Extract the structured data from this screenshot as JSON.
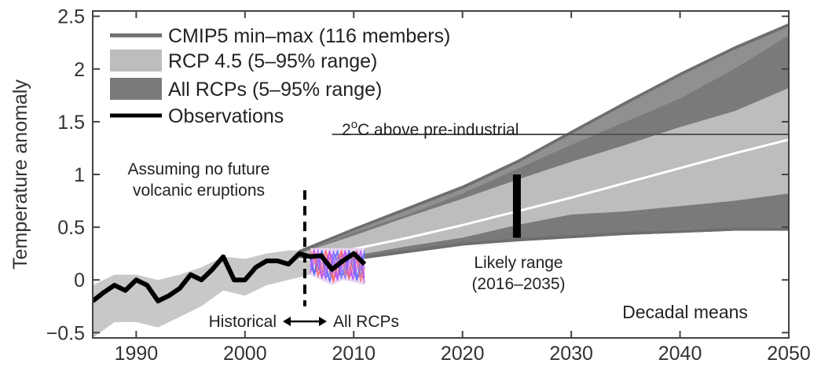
{
  "chart_data": {
    "type": "area",
    "ylabel": "Temperature anomaly",
    "xlim": [
      1986,
      2050
    ],
    "ylim": [
      -0.55,
      2.55
    ],
    "x_ticks": [
      1990,
      2000,
      2010,
      2020,
      2030,
      2040,
      2050
    ],
    "y_ticks": [
      -0.5,
      0,
      0.5,
      1,
      1.5,
      2,
      2.5
    ],
    "y_tick_labels": [
      "−0.5",
      "0",
      "0.5",
      "1",
      "1.5",
      "2",
      "2.5"
    ],
    "grid": false,
    "legend_position": "top-left",
    "legend": [
      {
        "label": "CMIP5 min–max (116 members)",
        "style": "line",
        "color": "#6e6e6e"
      },
      {
        "label": "RCP 4.5 (5–95% range)",
        "style": "patch",
        "color": "#bdbdbd"
      },
      {
        "label": "All RCPs (5–95% range)",
        "style": "patch",
        "color": "#7a7a7a"
      },
      {
        "label": "Observations",
        "style": "line",
        "color": "#000000"
      }
    ],
    "colors": {
      "cmip_line": "#6e6e6e",
      "rcp45_band": "#bdbdbd",
      "all_rcp_band": "#7a7a7a",
      "observations": "#000000",
      "median": "#ffffff",
      "historical_members": "#c8c8c8",
      "obs_datasets": [
        "#ff5a5a",
        "#4a5aff",
        "#b04aff"
      ]
    },
    "series": [
      {
        "name": "CMIP5 min–max (116 members)",
        "kind": "envelope",
        "x": [
          2005,
          2010,
          2015,
          2020,
          2025,
          2030,
          2035,
          2040,
          2045,
          2050
        ],
        "upper": [
          0.27,
          0.48,
          0.68,
          0.88,
          1.12,
          1.4,
          1.68,
          1.95,
          2.2,
          2.42
        ],
        "lower": [
          0.22,
          0.2,
          0.27,
          0.34,
          0.38,
          0.41,
          0.44,
          0.46,
          0.48,
          0.48
        ]
      },
      {
        "name": "All RCPs (5–95% range)",
        "kind": "band",
        "x": [
          2005,
          2010,
          2015,
          2020,
          2025,
          2030,
          2035,
          2040,
          2045,
          2050
        ],
        "upper": [
          0.25,
          0.45,
          0.62,
          0.82,
          1.05,
          1.28,
          1.5,
          1.72,
          2.0,
          2.32
        ],
        "lower": [
          0.23,
          0.21,
          0.26,
          0.31,
          0.35,
          0.4,
          0.45,
          0.48,
          0.49,
          0.5
        ]
      },
      {
        "name": "RCP 4.5 (5–95% range)",
        "kind": "band",
        "x": [
          2005,
          2010,
          2015,
          2020,
          2025,
          2030,
          2035,
          2040,
          2045,
          2050
        ],
        "upper": [
          0.25,
          0.42,
          0.6,
          0.77,
          0.95,
          1.12,
          1.28,
          1.45,
          1.6,
          1.82
        ],
        "lower": [
          0.24,
          0.23,
          0.32,
          0.4,
          0.52,
          0.62,
          0.65,
          0.7,
          0.75,
          0.82
        ]
      },
      {
        "name": "Median",
        "kind": "line",
        "x": [
          2008,
          2015,
          2020,
          2025,
          2030,
          2035,
          2040,
          2045,
          2050
        ],
        "y": [
          0.25,
          0.4,
          0.52,
          0.65,
          0.78,
          0.92,
          1.06,
          1.2,
          1.33
        ]
      },
      {
        "name": "Historical members",
        "kind": "band",
        "x": [
          1986,
          1988,
          1990,
          1992,
          1994,
          1996,
          1998,
          2000,
          2002,
          2004,
          2006
        ],
        "upper": [
          -0.05,
          0.05,
          0.05,
          0.0,
          0.05,
          0.12,
          0.22,
          0.2,
          0.25,
          0.28,
          0.28
        ],
        "lower": [
          -0.55,
          -0.4,
          -0.4,
          -0.45,
          -0.35,
          -0.25,
          -0.1,
          -0.15,
          -0.05,
          0.0,
          0.05
        ]
      },
      {
        "name": "Observations",
        "kind": "line",
        "x": [
          1986,
          1987,
          1988,
          1989,
          1990,
          1991,
          1992,
          1993,
          1994,
          1995,
          1996,
          1997,
          1998,
          1999,
          2000,
          2001,
          2002,
          2003,
          2004,
          2005,
          2006,
          2007,
          2008,
          2009,
          2010,
          2011
        ],
        "y": [
          -0.2,
          -0.12,
          -0.05,
          -0.1,
          0.0,
          -0.05,
          -0.2,
          -0.15,
          -0.08,
          0.05,
          0.0,
          0.1,
          0.22,
          0.0,
          0.0,
          0.12,
          0.18,
          0.18,
          0.15,
          0.25,
          0.22,
          0.23,
          0.1,
          0.18,
          0.25,
          0.15
        ]
      },
      {
        "name": "Observation datasets",
        "kind": "band",
        "x": [
          2006,
          2007,
          2008,
          2009,
          2010,
          2011
        ],
        "upper": [
          0.3,
          0.3,
          0.3,
          0.3,
          0.3,
          0.3
        ],
        "lower": [
          0.05,
          0.0,
          -0.05,
          0.0,
          -0.02,
          -0.05
        ]
      }
    ],
    "likely_range": {
      "x": 2025,
      "low": 0.4,
      "high": 1.0
    },
    "threshold": {
      "label": "2°C above pre-industrial",
      "y": 1.38,
      "x_start": 2008
    },
    "divider": {
      "x": 2005.5,
      "y_low": -0.25,
      "y_high": 0.85
    },
    "annotations": {
      "volcanic_line1": "Assuming no future",
      "volcanic_line2": "volcanic eruptions",
      "likely_line1": "Likely range",
      "likely_line2": "(2016–2035)",
      "historical": "Historical",
      "all_rcps": "All RCPs",
      "decadal_means": "Decadal means",
      "threshold_label_base": "2",
      "threshold_label_sup": "o",
      "threshold_label_rest": "C above pre-industrial"
    }
  }
}
